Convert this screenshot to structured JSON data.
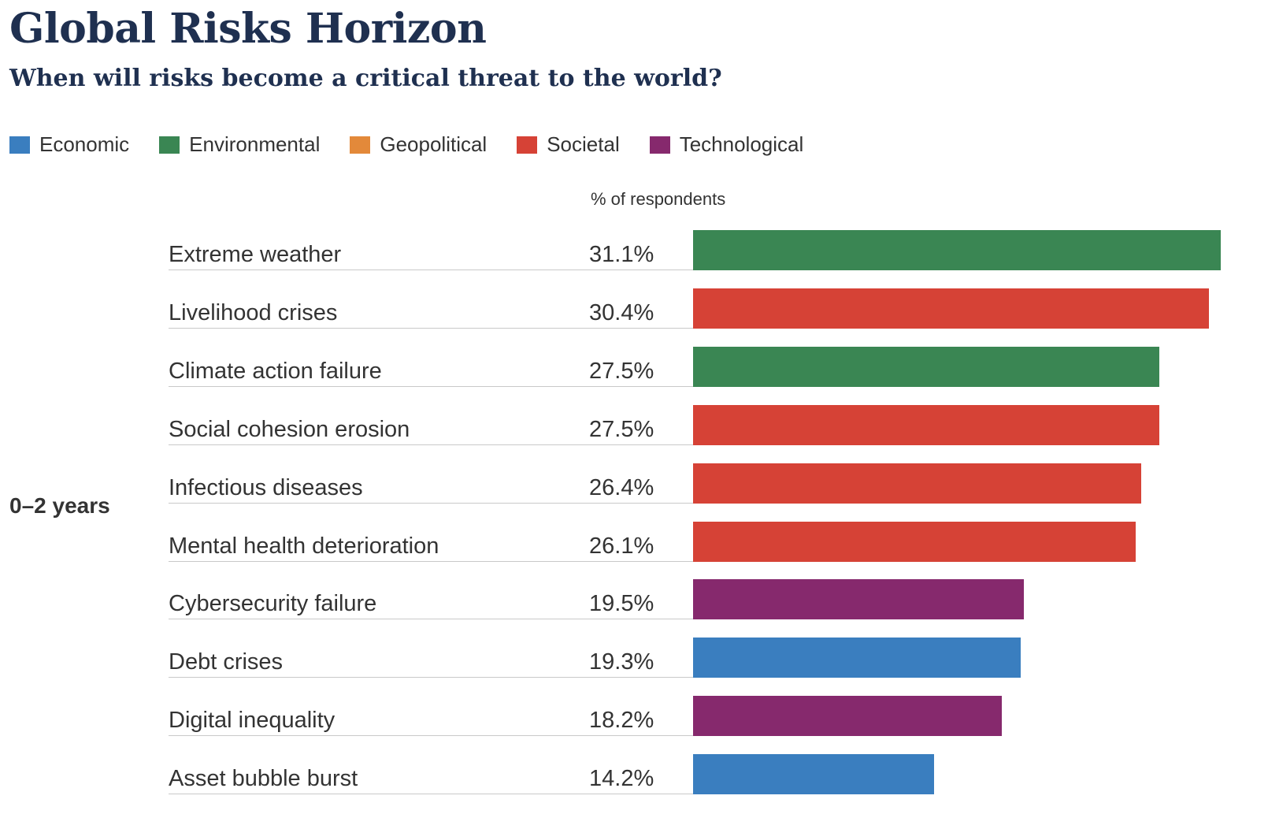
{
  "chart_data": {
    "type": "bar",
    "orientation": "horizontal",
    "title": "Global Risks Horizon",
    "subtitle": "When will risks become a critical threat to the world?",
    "axis_label": "% of respondents",
    "group_label": "0–2 years",
    "xlim": [
      0,
      31.1
    ],
    "legend": [
      {
        "label": "Economic",
        "color": "#3a7ebf"
      },
      {
        "label": "Environmental",
        "color": "#3a8653"
      },
      {
        "label": "Geopolitical",
        "color": "#e3893a"
      },
      {
        "label": "Societal",
        "color": "#d64236"
      },
      {
        "label": "Technological",
        "color": "#86296d"
      }
    ],
    "categories": [
      "Extreme weather",
      "Livelihood crises",
      "Climate action failure",
      "Social cohesion erosion",
      "Infectious diseases",
      "Mental health deterioration",
      "Cybersecurity failure",
      "Debt crises",
      "Digital inequality",
      "Asset bubble burst"
    ],
    "values": [
      31.1,
      30.4,
      27.5,
      27.5,
      26.4,
      26.1,
      19.5,
      19.3,
      18.2,
      14.2
    ],
    "value_labels": [
      "31.1%",
      "30.4%",
      "27.5%",
      "27.5%",
      "26.4%",
      "26.1%",
      "19.5%",
      "19.3%",
      "18.2%",
      "14.2%"
    ],
    "bar_categories": [
      "Environmental",
      "Societal",
      "Environmental",
      "Societal",
      "Societal",
      "Societal",
      "Technological",
      "Economic",
      "Technological",
      "Economic"
    ]
  }
}
